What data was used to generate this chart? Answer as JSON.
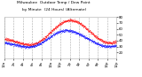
{
  "title_line1": "Milwaukee  Outdoor Temp / Dew Point",
  "title_line2": "by Minute  (24 Hours) (Alternate)",
  "bg_color": "#ffffff",
  "plot_bg_color": "#ffffff",
  "text_color": "#000000",
  "grid_color": "#aaaaaa",
  "temp_color": "#ff0000",
  "dew_color": "#0000ff",
  "ylim": [
    10,
    80
  ],
  "num_points": 1440
}
